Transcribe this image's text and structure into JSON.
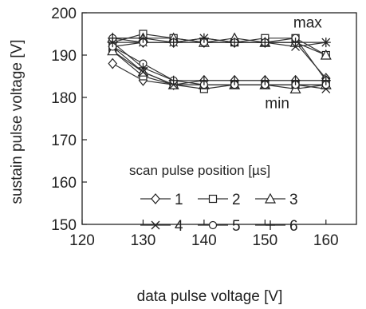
{
  "chart_data": {
    "type": "line",
    "xlabel": "data pulse voltage [V]",
    "ylabel": "sustain pulse voltage [V]",
    "xlim": [
      120,
      165
    ],
    "ylim": [
      150,
      200
    ],
    "xticks": [
      120,
      130,
      140,
      150,
      160
    ],
    "yticks": [
      150,
      160,
      170,
      180,
      190,
      200
    ],
    "grid": false,
    "x": [
      125,
      130,
      135,
      140,
      145,
      150,
      155,
      160
    ],
    "annotations": [
      {
        "text": "max",
        "x": 157,
        "y": 196.5
      },
      {
        "text": "min",
        "x": 152,
        "y": 177.5
      }
    ],
    "legend": {
      "title": "scan pulse position [µs]",
      "placement": "center-lower"
    },
    "series": [
      {
        "name": "1",
        "marker": "diamond",
        "group": "max",
        "values": [
          192,
          193,
          193,
          193,
          193,
          193,
          193,
          184.5
        ]
      },
      {
        "name": "2",
        "marker": "square",
        "group": "max",
        "values": [
          193,
          195,
          194,
          193,
          193,
          194,
          194,
          190
        ]
      },
      {
        "name": "3",
        "marker": "triangle",
        "group": "max",
        "values": [
          194,
          194,
          194,
          193,
          194,
          193,
          193,
          190
        ]
      },
      {
        "name": "4",
        "marker": "x",
        "group": "max",
        "values": [
          193,
          193,
          193,
          194,
          193,
          193,
          192,
          193
        ]
      },
      {
        "name": "5",
        "marker": "circle",
        "group": "max",
        "values": [
          194,
          193,
          193,
          193,
          193,
          193,
          194,
          184
        ]
      },
      {
        "name": "6",
        "marker": "plus",
        "group": "max",
        "values": [
          194,
          194,
          193,
          194,
          193,
          193,
          193,
          193
        ]
      },
      {
        "name": "1",
        "marker": "diamond",
        "group": "min",
        "values": [
          188,
          184,
          183,
          184,
          184,
          184,
          184,
          184
        ]
      },
      {
        "name": "2",
        "marker": "square",
        "group": "min",
        "values": [
          191,
          185,
          183,
          182,
          183,
          183,
          183,
          183
        ]
      },
      {
        "name": "3",
        "marker": "triangle",
        "group": "min",
        "values": [
          191,
          186,
          183,
          183,
          183,
          183,
          182,
          183
        ]
      },
      {
        "name": "4",
        "marker": "x",
        "group": "min",
        "values": [
          192,
          186,
          183,
          183,
          183,
          183,
          183,
          182
        ]
      },
      {
        "name": "5",
        "marker": "circle",
        "group": "min",
        "values": [
          192,
          188,
          184,
          183,
          183,
          183,
          183,
          183
        ]
      },
      {
        "name": "6",
        "marker": "plus",
        "group": "min",
        "values": [
          193,
          187,
          184,
          184,
          184,
          184,
          184,
          184
        ]
      }
    ]
  }
}
